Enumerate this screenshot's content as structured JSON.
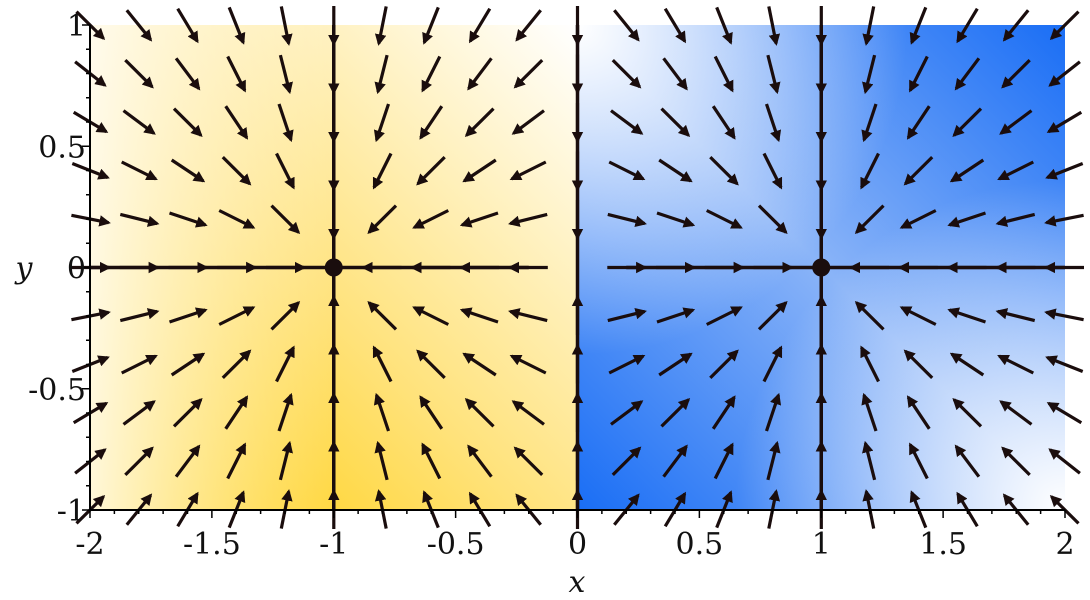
{
  "chart_data": {
    "type": "vector-field",
    "title": "",
    "xlabel": "x",
    "ylabel": "y",
    "xlim": [
      -2,
      2
    ],
    "ylim": [
      -1,
      1
    ],
    "xticks": [
      -2,
      -1.5,
      -1,
      -0.5,
      0,
      0.5,
      1,
      1.5,
      2
    ],
    "xtick_labels": [
      "-2",
      "-1.5",
      "-1",
      "-0.5",
      "0",
      "0.5",
      "1",
      "1.5",
      "2"
    ],
    "yticks": [
      -1,
      -0.5,
      0,
      0.5,
      1
    ],
    "ytick_labels": [
      "-1",
      "-0.5",
      "0",
      "0.5",
      "1"
    ],
    "grid": false,
    "fixed_points": [
      {
        "x": -1,
        "y": 0
      },
      {
        "x": 1,
        "y": 0
      }
    ],
    "field": "points toward the nearer of the two fixed points; dividing line at x = 0",
    "background": {
      "left_region_color": "#ffcc00",
      "right_region_color": "#1a6ef5",
      "light_color": "#ffffff"
    },
    "colors": {
      "arrow": "#1a0d0d",
      "axis": "#000000"
    }
  }
}
